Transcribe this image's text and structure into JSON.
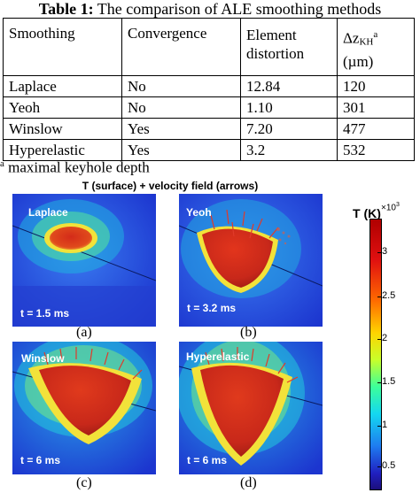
{
  "table": {
    "caption_bold": "Table 1:",
    "caption_text": " The comparison of ALE smoothing methods",
    "headers": {
      "smoothing": "Smoothing",
      "convergence": "Convergence",
      "distortion_line1": "Element",
      "distortion_line2": "distortion",
      "depth_delta": "Δz",
      "depth_sub": "KH",
      "depth_sup": "a",
      "depth_unit": "(µm)"
    },
    "rows": [
      {
        "method": "Laplace",
        "convergence": "No",
        "distortion": "12.84",
        "depth": "120"
      },
      {
        "method": "Yeoh",
        "convergence": "No",
        "distortion": "1.10",
        "depth": "301"
      },
      {
        "method": "Winslow",
        "convergence": "Yes",
        "distortion": "7.20",
        "depth": "477"
      },
      {
        "method": "Hyperelastic",
        "convergence": "Yes",
        "distortion": "3.2",
        "depth": "532"
      }
    ],
    "footnote_mark": "a",
    "footnote_text": " maximal keyhole depth"
  },
  "figure": {
    "title": "T (surface) + velocity field (arrows)",
    "panels": [
      {
        "name": "Laplace",
        "time": "t = 1.5 ms",
        "sublabel": "(a)"
      },
      {
        "name": "Yeoh",
        "time": "t = 3.2 ms",
        "sublabel": "(b)"
      },
      {
        "name": "Winslow",
        "time": "t = 6 ms",
        "sublabel": "(c)"
      },
      {
        "name": "Hyperelastic",
        "time": "t = 6 ms",
        "sublabel": "(d)"
      }
    ],
    "colorbar": {
      "title": "T (K)",
      "scale_base": "×10",
      "scale_exp": "3",
      "ticks": [
        "3",
        "2.5",
        "2",
        "1.5",
        "1",
        "0.5"
      ]
    }
  },
  "colors": {
    "background_blue": "#1f3fd6",
    "melt_red": "#d8281a",
    "rim_yellow": "#f2e23a"
  }
}
